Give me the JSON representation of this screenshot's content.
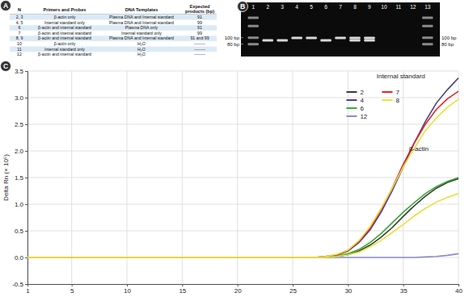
{
  "panel_labels": [
    "A",
    "B",
    "C"
  ],
  "table": {
    "header": [
      "N",
      "Primers and Probes",
      "DNA Templates",
      "Expected products (bp)"
    ],
    "rows": [
      [
        "2, 3",
        "β-actin only",
        "Plasma DNA and Internal standard",
        "91"
      ],
      [
        "4, 5",
        "Internal standard only",
        "Plasma DNA and Internal standard",
        "99"
      ],
      [
        "6",
        "β-actin and internal standard",
        "Plasma DNA only",
        "91"
      ],
      [
        "7",
        "β-actin and internal standard",
        "Internal standard only",
        "99"
      ],
      [
        "8, 9",
        "β-actin and internal standard",
        "Plasma DNA and Internal standard",
        "91 and 99"
      ],
      [
        "10",
        "β-actin only",
        "H₂O",
        "--------"
      ],
      [
        "11",
        "Internal standard only",
        "H₂O",
        "--------"
      ],
      [
        "12",
        "β-actin and internal standard",
        "H₂O",
        "--------"
      ]
    ]
  },
  "gel": {
    "lanes": [
      "1",
      "2",
      "3",
      "4",
      "5",
      "6",
      "7",
      "8",
      "9",
      "10",
      "11",
      "12",
      "13"
    ],
    "bands": [
      [
        80,
        100,
        150,
        200
      ],
      [
        91
      ],
      [
        91
      ],
      [
        99
      ],
      [
        99
      ],
      [
        91
      ],
      [
        99
      ],
      [
        91,
        99
      ],
      [
        91,
        99
      ],
      [],
      [],
      [],
      [
        80,
        100,
        150,
        200
      ]
    ],
    "bp_range": [
      52,
      250
    ],
    "markers": [
      {
        "value": 100,
        "label": "100 bp"
      },
      {
        "value": 80,
        "label": "80 bp"
      }
    ]
  },
  "chart_data": {
    "type": "line",
    "y_label": "Delta Rn (× 10⁵)",
    "annotations": [
      "Internal standard",
      "β-actin"
    ],
    "x": [
      1,
      2,
      3,
      4,
      5,
      6,
      7,
      8,
      9,
      10,
      11,
      12,
      13,
      14,
      15,
      16,
      17,
      18,
      19,
      20,
      21,
      22,
      23,
      24,
      25,
      26,
      27,
      28,
      29,
      30,
      31,
      32,
      33,
      34,
      35,
      36,
      37,
      38,
      39,
      40
    ],
    "xlim": [
      1,
      40
    ],
    "xticks": [
      1,
      5,
      10,
      15,
      20,
      25,
      30,
      35,
      40
    ],
    "ylim": [
      -0.5,
      3.5
    ],
    "yticks": [
      -0.5,
      {
        "value": 0,
        "label": "0.0"
      },
      0.5,
      {
        "value": 1,
        "label": "1.0"
      },
      1.5,
      {
        "value": 2,
        "label": "2.0"
      },
      2.5,
      {
        "value": 3,
        "label": "3.0"
      },
      3.5
    ],
    "grid": true,
    "legend": "upper right",
    "series": [
      {
        "name": "2",
        "color": "#3b3b2c",
        "values": [
          0,
          0,
          0,
          0,
          0,
          0,
          0,
          0,
          0,
          0,
          0,
          0,
          0,
          0,
          0,
          0,
          0,
          0,
          0,
          0,
          0,
          0,
          0,
          0,
          0,
          0,
          0,
          0,
          0.02,
          0.05,
          0.12,
          0.23,
          0.38,
          0.56,
          0.77,
          0.97,
          1.15,
          1.3,
          1.41,
          1.48
        ]
      },
      {
        "name": "4",
        "color": "#4b3f8f",
        "values": [
          0,
          0,
          0,
          0,
          0,
          0,
          0,
          0,
          0,
          0,
          0,
          0,
          0,
          0,
          0,
          0,
          0,
          0,
          0,
          0,
          0,
          0,
          0,
          0,
          0,
          0,
          0,
          0.02,
          0.05,
          0.12,
          0.28,
          0.52,
          0.85,
          1.25,
          1.7,
          2.15,
          2.55,
          2.9,
          3.15,
          3.37
        ]
      },
      {
        "name": "6",
        "color": "#3aaa3a",
        "values": [
          0,
          0,
          0,
          0,
          0,
          0,
          0,
          0,
          0,
          0,
          0,
          0,
          0,
          0,
          0,
          0,
          0,
          0,
          0,
          0,
          0,
          0,
          0,
          0,
          0,
          0,
          0,
          0.01,
          0.03,
          0.07,
          0.15,
          0.28,
          0.45,
          0.65,
          0.85,
          1.03,
          1.2,
          1.33,
          1.43,
          1.5
        ]
      },
      {
        "name": "12",
        "color": "#8a8ad0",
        "values": [
          0,
          0,
          0,
          0,
          0,
          0,
          0,
          0,
          0,
          0,
          0,
          0,
          0,
          0,
          0,
          0,
          0,
          0,
          0,
          0,
          0,
          0,
          0,
          0,
          0,
          0,
          0,
          0,
          0,
          0,
          0,
          0,
          0,
          0,
          0,
          0,
          0.01,
          0.02,
          0.04,
          0.07
        ]
      },
      {
        "name": "7",
        "color": "#e02828",
        "values": [
          0,
          0,
          0,
          0,
          0,
          0,
          0,
          0,
          0,
          0,
          0,
          0,
          0,
          0,
          0,
          0,
          0,
          0,
          0,
          0,
          0,
          0,
          0,
          0,
          0,
          0,
          0,
          0.02,
          0.05,
          0.13,
          0.3,
          0.55,
          0.9,
          1.3,
          1.75,
          2.15,
          2.5,
          2.78,
          2.98,
          3.12
        ]
      },
      {
        "name": "8",
        "color": "#e8e040",
        "values": [
          0,
          0,
          0,
          0,
          0,
          0,
          0,
          0,
          0,
          0,
          0,
          0,
          0,
          0,
          0,
          0,
          0,
          0,
          0,
          0,
          0,
          0,
          0,
          0,
          0,
          0,
          0,
          0.02,
          0.06,
          0.14,
          0.32,
          0.58,
          0.92,
          1.3,
          1.7,
          2.05,
          2.38,
          2.62,
          2.82,
          2.97
        ]
      },
      {
        "name": "8",
        "color": "#e8e040",
        "values": [
          0,
          0,
          0,
          0,
          0,
          0,
          0,
          0,
          0,
          0,
          0,
          0,
          0,
          0,
          0,
          0,
          0,
          0,
          0,
          0,
          0,
          0,
          0,
          0,
          0,
          0,
          0,
          0,
          0.02,
          0.05,
          0.1,
          0.2,
          0.32,
          0.47,
          0.62,
          0.78,
          0.92,
          1.04,
          1.13,
          1.2
        ]
      }
    ]
  }
}
